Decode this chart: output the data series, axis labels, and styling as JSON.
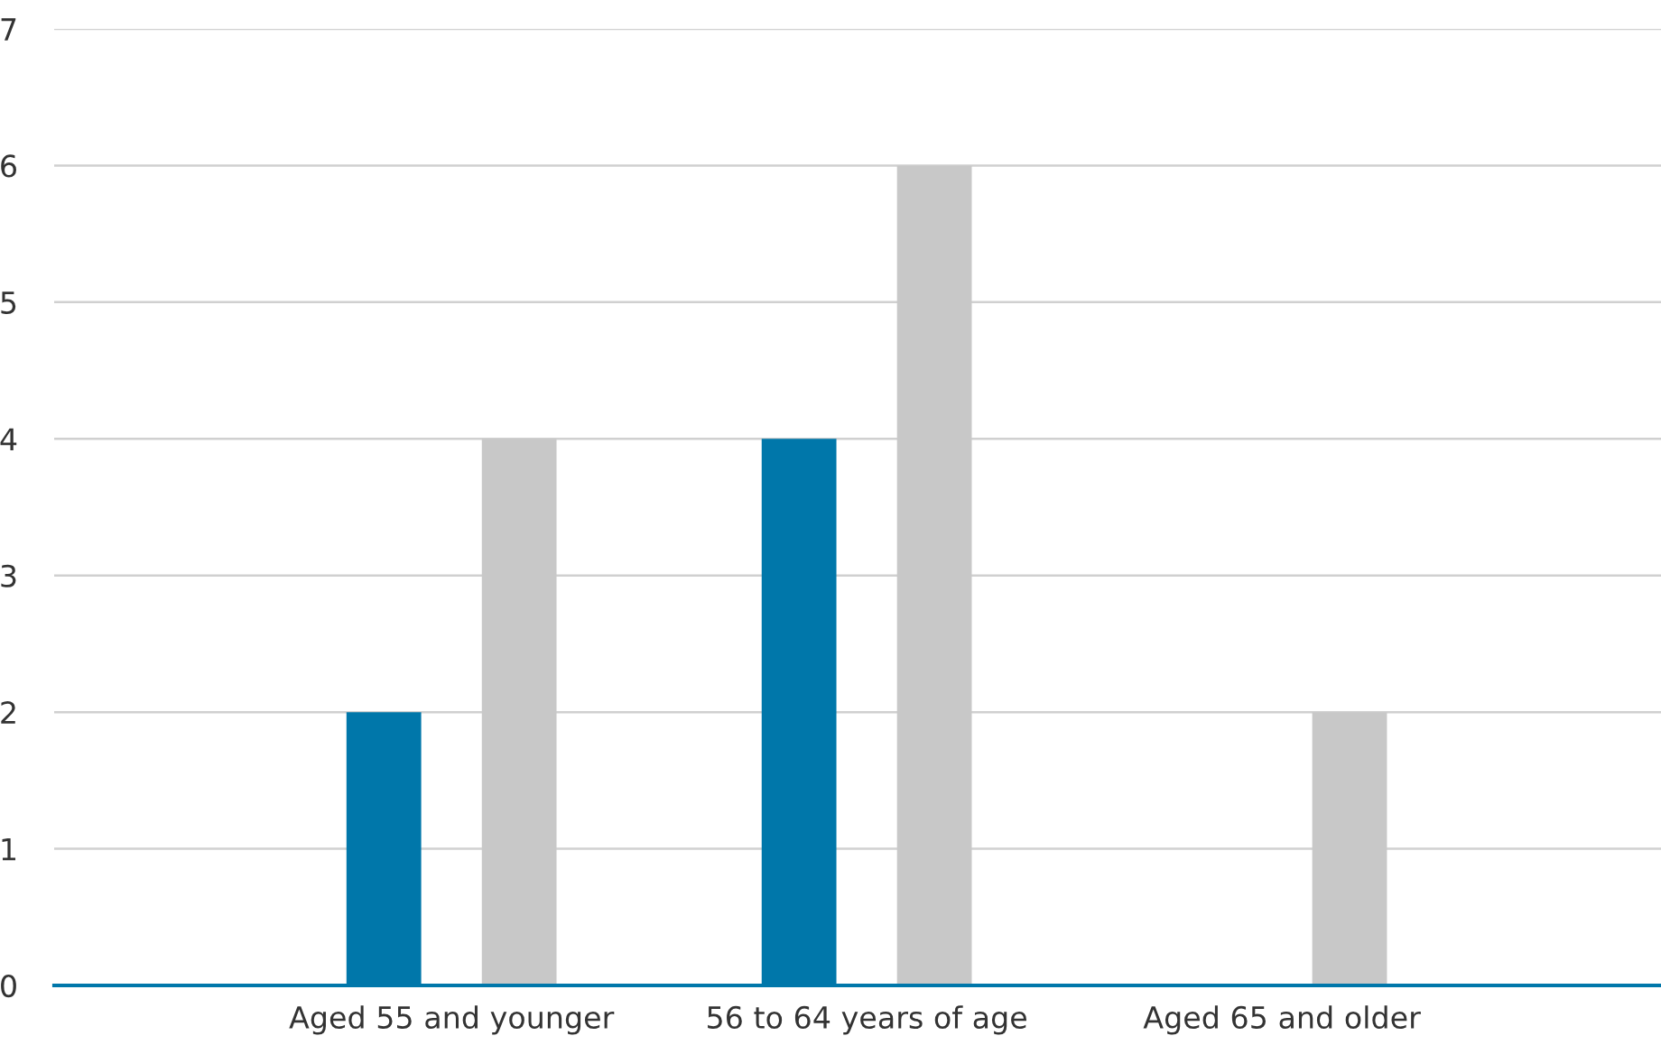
{
  "chart_data": {
    "type": "bar",
    "categories": [
      "Aged 55 and younger",
      "56 to 64 years of age",
      "Aged 65 and older"
    ],
    "series": [
      {
        "color": "#0077aa",
        "values": [
          2,
          4,
          0
        ]
      },
      {
        "color": "#c8c8c8",
        "values": [
          4,
          6,
          2
        ]
      }
    ],
    "ylim": [
      0,
      7
    ],
    "yticks": [
      0,
      1,
      2,
      3,
      4,
      5,
      6,
      7
    ],
    "grid": "y",
    "legend": false
  }
}
